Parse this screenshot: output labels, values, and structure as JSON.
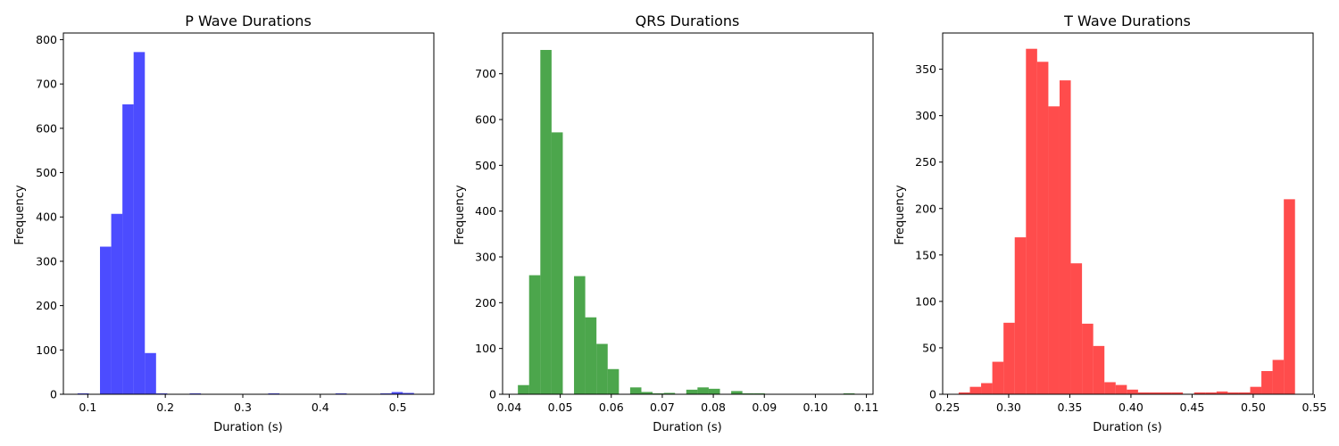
{
  "chart_data": [
    {
      "type": "bar",
      "title": "P Wave Durations",
      "xlabel": "Duration (s)",
      "ylabel": "Frequency",
      "color": "#0000ff",
      "xlim": [
        0.0685,
        0.5465
      ],
      "ylim": [
        0,
        815
      ],
      "xticks": [
        0.1,
        0.2,
        0.3,
        0.4,
        0.5
      ],
      "xtick_labels": [
        "0.1",
        "0.2",
        "0.3",
        "0.4",
        "0.5"
      ],
      "yticks": [
        0,
        100,
        200,
        300,
        400,
        500,
        600,
        700,
        800
      ],
      "ytick_labels": [
        "0",
        "100",
        "200",
        "300",
        "400",
        "500",
        "600",
        "700",
        "800"
      ],
      "bin_start": 0.0868,
      "bin_width": 0.01447,
      "values": [
        2,
        0,
        333,
        407,
        654,
        772,
        93,
        2,
        0,
        0,
        2,
        0,
        0,
        0,
        0,
        0,
        0,
        2,
        0,
        0,
        0,
        0,
        0,
        2,
        0,
        0,
        0,
        2,
        5,
        3
      ]
    },
    {
      "type": "bar",
      "title": "QRS Durations",
      "xlabel": "Duration (s)",
      "ylabel": "Frequency",
      "color": "#008000",
      "xlim": [
        0.0387,
        0.1113
      ],
      "ylim": [
        0,
        789
      ],
      "xticks": [
        0.04,
        0.05,
        0.06,
        0.07,
        0.08,
        0.09,
        0.1,
        0.11
      ],
      "xtick_labels": [
        "0.04",
        "0.05",
        "0.06",
        "0.07",
        "0.08",
        "0.09",
        "0.10",
        "0.11"
      ],
      "yticks": [
        0,
        100,
        200,
        300,
        400,
        500,
        600,
        700
      ],
      "ytick_labels": [
        "0",
        "100",
        "200",
        "300",
        "400",
        "500",
        "600",
        "700"
      ],
      "bin_start": 0.0417,
      "bin_width": 0.0022,
      "values": [
        20,
        260,
        752,
        572,
        0,
        258,
        168,
        110,
        55,
        0,
        15,
        5,
        2,
        3,
        0,
        10,
        15,
        12,
        0,
        7,
        2,
        2,
        0,
        0,
        0,
        0,
        0,
        0,
        0,
        2
      ]
    },
    {
      "type": "bar",
      "title": "T Wave Durations",
      "xlabel": "Duration (s)",
      "ylabel": "Frequency",
      "color": "#ff0000",
      "xlim": [
        0.246,
        0.549
      ],
      "ylim": [
        0,
        389
      ],
      "xticks": [
        0.25,
        0.3,
        0.35,
        0.4,
        0.45,
        0.5,
        0.55
      ],
      "xtick_labels": [
        "0.25",
        "0.30",
        "0.35",
        "0.40",
        "0.45",
        "0.50",
        "0.55"
      ],
      "yticks": [
        0,
        50,
        100,
        150,
        200,
        250,
        300,
        350
      ],
      "ytick_labels": [
        "0",
        "50",
        "100",
        "150",
        "200",
        "250",
        "300",
        "350"
      ],
      "bin_start": 0.2591,
      "bin_width": 0.00917,
      "values": [
        2,
        8,
        12,
        35,
        77,
        169,
        372,
        358,
        310,
        338,
        141,
        76,
        52,
        13,
        10,
        5,
        2,
        2,
        2,
        2,
        0,
        2,
        2,
        3,
        2,
        2,
        8,
        25,
        37,
        210
      ]
    }
  ]
}
